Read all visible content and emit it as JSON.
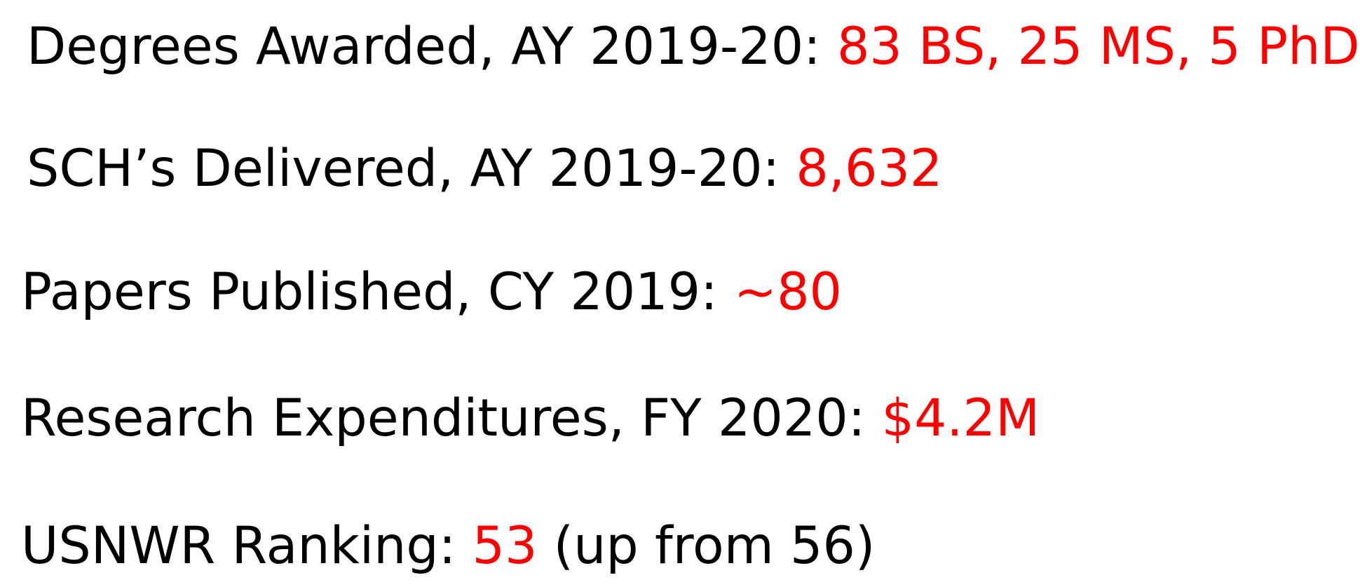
{
  "stats": [
    {
      "label": "Degrees Awarded, AY 2019-20: ",
      "value": "83 BS, 25 MS, 5 PhD",
      "suffix": ""
    },
    {
      "label": "SCH’s Delivered, AY 2019-20:  ",
      "value": "8,632",
      "suffix": ""
    },
    {
      "label": "Papers Published, CY 2019:  ",
      "value": "~80",
      "suffix": ""
    },
    {
      "label": "Research Expenditures, FY 2020: ",
      "value": "$4.2M",
      "suffix": ""
    },
    {
      "label": "USNWR Ranking: ",
      "value": "53",
      "suffix": " (up from 56)"
    }
  ],
  "colors": {
    "text": "#000000",
    "highlight": "#ff0000",
    "background": "#ffffff"
  }
}
